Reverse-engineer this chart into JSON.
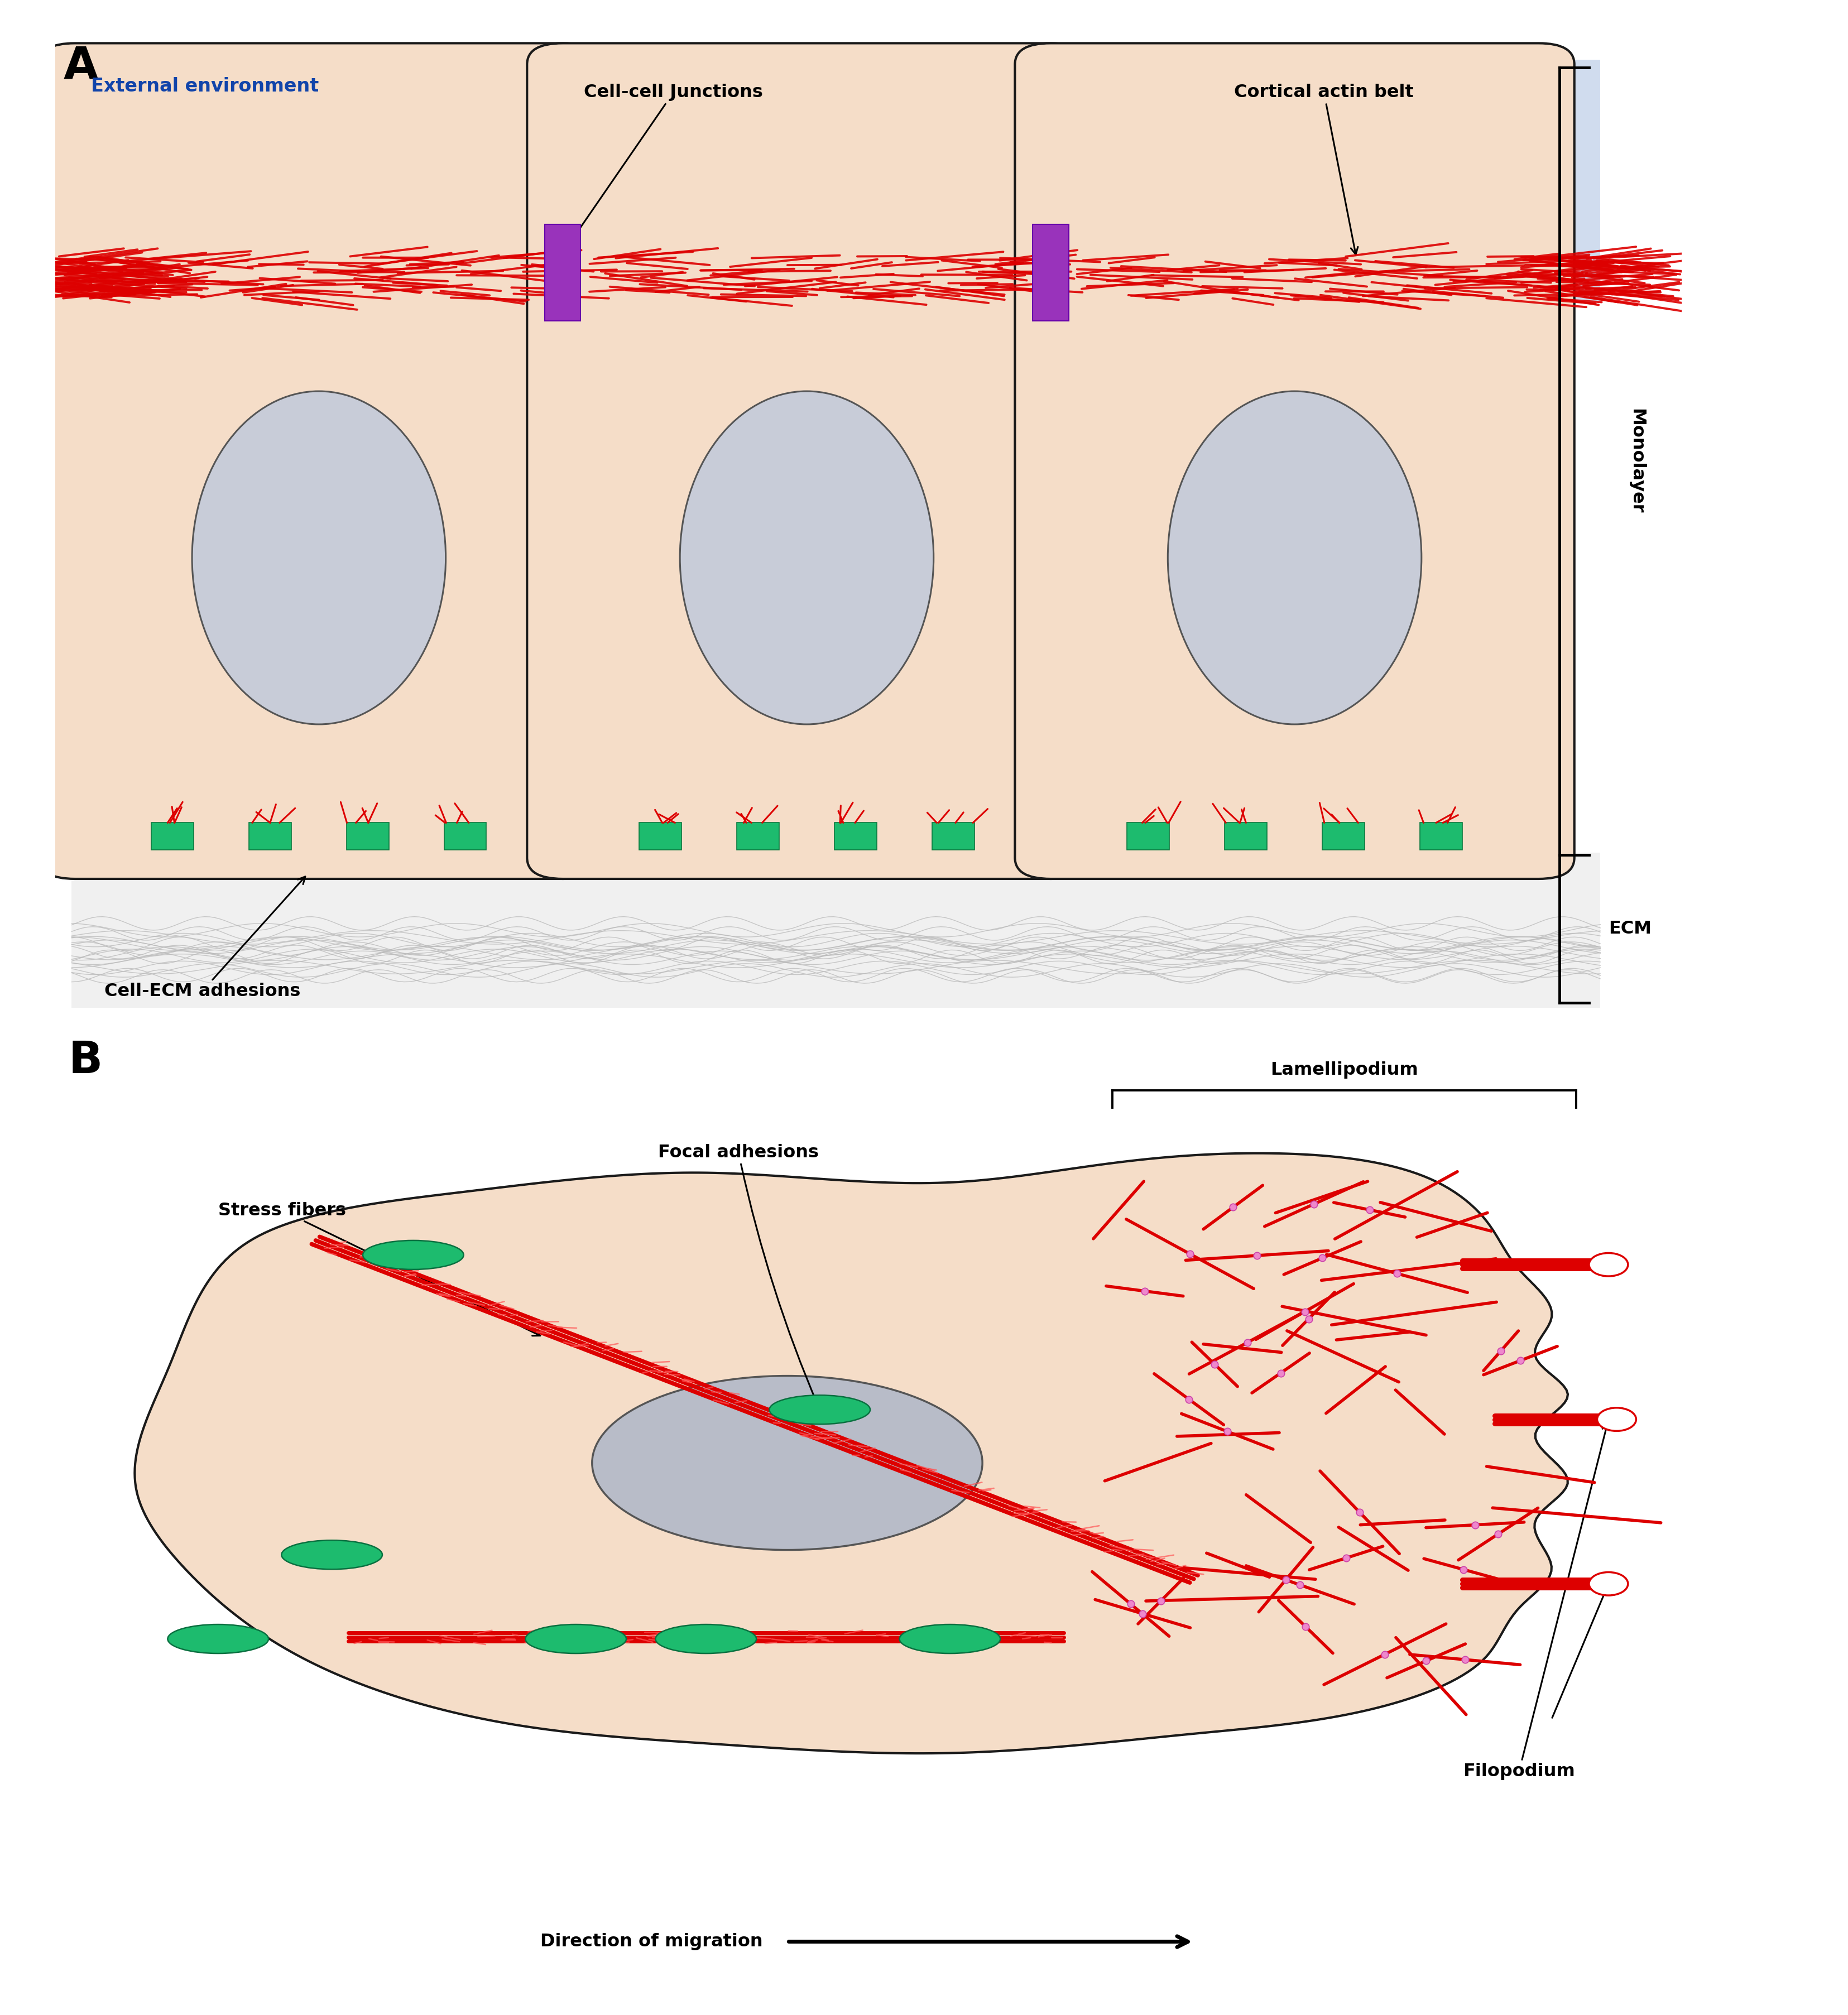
{
  "fig_width": 33.11,
  "fig_height": 36.11,
  "bg_color": "#ffffff",
  "cell_fill": "#f5ddc8",
  "cell_edge": "#1a1a1a",
  "nucleus_fill_A": "#c8ccd8",
  "nucleus_fill_B": "#b8bcc8",
  "nucleus_edge": "#555555",
  "actin_red": "#dd0000",
  "junction_purple": "#9933bb",
  "ecm_green": "#1dbb6e",
  "focal_green": "#1dbb6e",
  "ext_env_bg": "#d0dcee",
  "panel_A_label": "A",
  "panel_B_label": "B",
  "label_ext_env": "External environment",
  "label_cell_junction": "Cell-cell Junctions",
  "label_cortical": "Cortical actin belt",
  "label_ecm_adhesion": "Cell-ECM adhesions",
  "label_monolayer": "Monolayer",
  "label_ecm": "ECM",
  "label_focal": "Focal adhesions",
  "label_lamellipodium": "Lamellipodium",
  "label_stress": "Stress fibers",
  "label_filopodium": "Filopodium",
  "label_migration": "Direction of migration",
  "arp23_pink": "#ee88cc"
}
